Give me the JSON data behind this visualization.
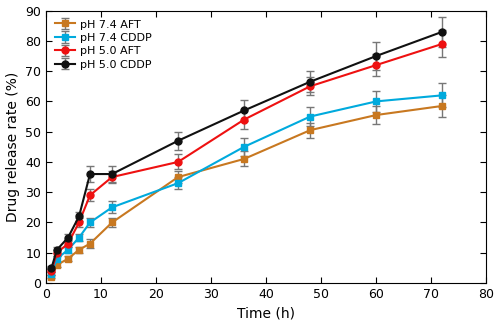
{
  "time": [
    1,
    2,
    4,
    6,
    8,
    12,
    24,
    36,
    48,
    60,
    72
  ],
  "ph74_aft": [
    2.0,
    6.0,
    8.0,
    11.0,
    13.0,
    20.0,
    35.0,
    41.0,
    50.5,
    55.5,
    58.5
  ],
  "ph74_aft_err": [
    0.5,
    0.8,
    0.8,
    1.0,
    1.5,
    1.5,
    2.0,
    2.5,
    2.5,
    3.0,
    3.5
  ],
  "ph74_cddp": [
    3.0,
    8.0,
    11.0,
    15.0,
    20.0,
    25.0,
    33.0,
    45.0,
    55.0,
    60.0,
    62.0
  ],
  "ph74_cddp_err": [
    0.5,
    1.0,
    1.0,
    1.2,
    1.5,
    2.0,
    2.0,
    3.0,
    3.0,
    3.5,
    4.0
  ],
  "ph50_aft": [
    4.0,
    10.0,
    13.0,
    20.0,
    29.0,
    35.0,
    40.0,
    54.0,
    65.0,
    72.0,
    79.0
  ],
  "ph50_aft_err": [
    0.5,
    1.0,
    1.2,
    1.5,
    2.0,
    2.0,
    2.5,
    3.0,
    3.0,
    3.5,
    4.5
  ],
  "ph50_cddp": [
    5.0,
    11.0,
    15.0,
    22.0,
    36.0,
    36.0,
    47.0,
    57.0,
    66.5,
    75.0,
    83.0
  ],
  "ph50_cddp_err": [
    0.5,
    1.0,
    1.2,
    1.5,
    2.5,
    2.5,
    3.0,
    3.5,
    3.5,
    4.5,
    5.0
  ],
  "colors": {
    "ph74_aft": "#C87820",
    "ph74_cddp": "#00AADD",
    "ph50_aft": "#EE1111",
    "ph50_cddp": "#111111"
  },
  "ecolor": "#777777",
  "labels": {
    "ph74_aft": "pH 7.4 AFT",
    "ph74_cddp": "pH 7.4 CDDP",
    "ph50_aft": "pH 5.0 AFT",
    "ph50_cddp": "pH 5.0 CDDP"
  },
  "xlabel": "Time (h)",
  "ylabel": "Drug release rate (%)",
  "xlim": [
    0,
    80
  ],
  "ylim": [
    0,
    90
  ],
  "xticks": [
    0,
    10,
    20,
    30,
    40,
    50,
    60,
    70,
    80
  ],
  "yticks": [
    0,
    10,
    20,
    30,
    40,
    50,
    60,
    70,
    80,
    90
  ],
  "figsize": [
    5.0,
    3.26
  ],
  "dpi": 100
}
